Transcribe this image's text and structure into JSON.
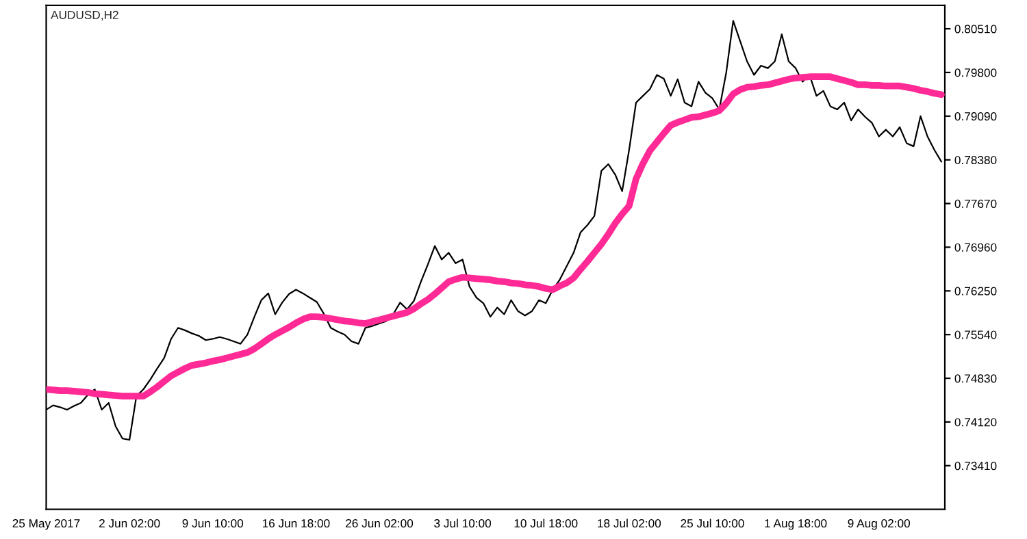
{
  "chart_data": {
    "type": "line",
    "title": "AUDUSD,H2",
    "ylim": [
      0.727,
      0.8089
    ],
    "categories": [
      "25 May 2017",
      null,
      null,
      null,
      null,
      null,
      null,
      null,
      null,
      null,
      null,
      null,
      "2 Jun 02:00",
      null,
      null,
      null,
      null,
      null,
      null,
      null,
      null,
      null,
      null,
      null,
      "9 Jun 10:00",
      null,
      null,
      null,
      null,
      null,
      null,
      null,
      null,
      null,
      null,
      null,
      "16 Jun 18:00",
      null,
      null,
      null,
      null,
      null,
      null,
      null,
      null,
      null,
      null,
      null,
      "26 Jun 02:00",
      null,
      null,
      null,
      null,
      null,
      null,
      null,
      null,
      null,
      null,
      null,
      "3 Jul 10:00",
      null,
      null,
      null,
      null,
      null,
      null,
      null,
      null,
      null,
      null,
      null,
      "10 Jul 18:00",
      null,
      null,
      null,
      null,
      null,
      null,
      null,
      null,
      null,
      null,
      null,
      "18 Jul 02:00",
      null,
      null,
      null,
      null,
      null,
      null,
      null,
      null,
      null,
      null,
      null,
      "25 Jul 10:00",
      null,
      null,
      null,
      null,
      null,
      null,
      null,
      null,
      null,
      null,
      null,
      "1 Aug 18:00",
      null,
      null,
      null,
      null,
      null,
      null,
      null,
      null,
      null,
      null,
      null,
      "9 Aug 02:00",
      null,
      null,
      null,
      null,
      null,
      null,
      null,
      null,
      null
    ],
    "yticks": [
      {
        "value": 0.7341,
        "label": "0.73410"
      },
      {
        "value": 0.7412,
        "label": "0.74120"
      },
      {
        "value": 0.7483,
        "label": "0.74830"
      },
      {
        "value": 0.7554,
        "label": "0.75540"
      },
      {
        "value": 0.7625,
        "label": "0.76250"
      },
      {
        "value": 0.7696,
        "label": "0.76960"
      },
      {
        "value": 0.7767,
        "label": "0.77670"
      },
      {
        "value": 0.7838,
        "label": "0.78380"
      },
      {
        "value": 0.7909,
        "label": "0.79090"
      },
      {
        "value": 0.798,
        "label": "0.79800"
      },
      {
        "value": 0.8051,
        "label": "0.80510"
      }
    ],
    "series": [
      {
        "color": "#000000",
        "values": [
          0.7432,
          0.7439,
          0.7436,
          0.7432,
          0.7438,
          0.7443,
          0.7456,
          0.7465,
          0.7432,
          0.7443,
          0.7405,
          0.7385,
          0.7383,
          0.7454,
          0.7465,
          0.7481,
          0.7499,
          0.7516,
          0.7547,
          0.7565,
          0.7561,
          0.7556,
          0.7552,
          0.7545,
          0.7547,
          0.755,
          0.7547,
          0.7543,
          0.7539,
          0.7554,
          0.7583,
          0.761,
          0.7621,
          0.7587,
          0.7606,
          0.762,
          0.7627,
          0.7621,
          0.7614,
          0.7607,
          0.7588,
          0.7565,
          0.7559,
          0.7554,
          0.7543,
          0.7539,
          0.7565,
          0.7568,
          0.7572,
          0.7576,
          0.7587,
          0.7606,
          0.7595,
          0.7609,
          0.764,
          0.7668,
          0.7698,
          0.7676,
          0.7687,
          0.767,
          0.7676,
          0.7632,
          0.7614,
          0.7605,
          0.7583,
          0.7598,
          0.7587,
          0.761,
          0.7592,
          0.7585,
          0.7592,
          0.761,
          0.7605,
          0.7627,
          0.7643,
          0.7665,
          0.7687,
          0.772,
          0.7732,
          0.7747,
          0.782,
          0.7831,
          0.7814,
          0.7787,
          0.7854,
          0.7931,
          0.7942,
          0.7953,
          0.7976,
          0.797,
          0.7942,
          0.7969,
          0.7931,
          0.7925,
          0.7965,
          0.7947,
          0.7938,
          0.792,
          0.798,
          0.8064,
          0.8031,
          0.7998,
          0.7976,
          0.7991,
          0.7987,
          0.7998,
          0.8042,
          0.7998,
          0.7987,
          0.7965,
          0.7976,
          0.7942,
          0.795,
          0.7925,
          0.792,
          0.7931,
          0.7902,
          0.792,
          0.7908,
          0.7898,
          0.7876,
          0.7887,
          0.7876,
          0.7891,
          0.7865,
          0.786,
          0.7909,
          0.7876,
          0.7854,
          0.7835
        ]
      },
      {
        "color": "#ff2a95",
        "values": [
          0.7465,
          0.7464,
          0.7463,
          0.7463,
          0.7462,
          0.7461,
          0.746,
          0.7458,
          0.7457,
          0.7456,
          0.7455,
          0.7454,
          0.7454,
          0.7454,
          0.7454,
          0.7461,
          0.7469,
          0.7478,
          0.7487,
          0.7493,
          0.7499,
          0.7504,
          0.7506,
          0.7508,
          0.7511,
          0.7513,
          0.7516,
          0.7519,
          0.7522,
          0.7525,
          0.7531,
          0.7539,
          0.7547,
          0.7554,
          0.756,
          0.7566,
          0.7573,
          0.7579,
          0.7583,
          0.7583,
          0.7582,
          0.758,
          0.7578,
          0.7576,
          0.7575,
          0.7573,
          0.7572,
          0.7575,
          0.7578,
          0.7581,
          0.7584,
          0.7587,
          0.759,
          0.7596,
          0.7604,
          0.7611,
          0.762,
          0.763,
          0.764,
          0.7644,
          0.7647,
          0.7646,
          0.7645,
          0.7644,
          0.7643,
          0.7641,
          0.764,
          0.7638,
          0.7637,
          0.7635,
          0.7634,
          0.7632,
          0.7629,
          0.7627,
          0.7633,
          0.7638,
          0.7646,
          0.766,
          0.7673,
          0.7687,
          0.7701,
          0.7717,
          0.7735,
          0.775,
          0.7763,
          0.7807,
          0.7832,
          0.7853,
          0.7867,
          0.7881,
          0.7894,
          0.7899,
          0.7903,
          0.7907,
          0.7908,
          0.7911,
          0.7914,
          0.7918,
          0.793,
          0.7945,
          0.7952,
          0.7956,
          0.7957,
          0.7959,
          0.796,
          0.7963,
          0.7966,
          0.7969,
          0.7971,
          0.7972,
          0.7973,
          0.7973,
          0.7973,
          0.7973,
          0.797,
          0.7967,
          0.7964,
          0.796,
          0.796,
          0.7959,
          0.7959,
          0.7958,
          0.7958,
          0.7958,
          0.7956,
          0.7954,
          0.7951,
          0.7949,
          0.7946,
          0.7944
        ]
      }
    ]
  }
}
